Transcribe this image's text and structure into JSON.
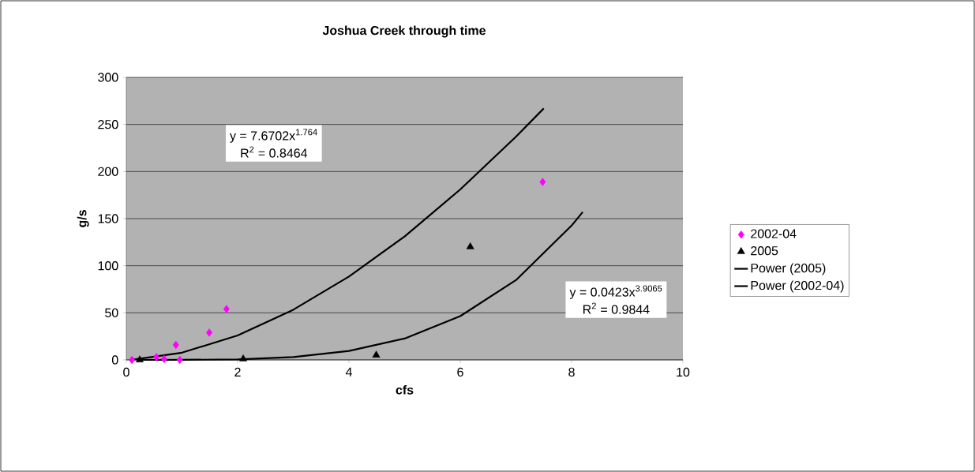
{
  "chart_data": {
    "type": "scatter",
    "title": "Joshua Creek through time",
    "xlabel": "cfs",
    "ylabel": "g/s",
    "xlim": [
      0,
      10
    ],
    "xticks": [
      0,
      2,
      4,
      6,
      8,
      10
    ],
    "ylim": [
      0,
      300
    ],
    "yticks": [
      0,
      50,
      100,
      150,
      200,
      250,
      300
    ],
    "grid": "y",
    "legend": "right",
    "series": [
      {
        "name": "2002-04",
        "color": "#ff00ff",
        "marker": "diamond",
        "x": [
          0.1,
          0.54,
          0.68,
          0.89,
          0.96,
          1.49,
          1.8,
          7.48
        ],
        "values": [
          0,
          3,
          1,
          16,
          0,
          29,
          54,
          189
        ]
      },
      {
        "name": "2005",
        "color": "#000000",
        "marker": "triangle",
        "x": [
          0.24,
          2.1,
          4.49,
          6.18
        ],
        "values": [
          0,
          1,
          5,
          120
        ]
      },
      {
        "name": "Power (2005)",
        "type": "line",
        "color": "#000000",
        "marker": "none",
        "x": [
          0.24,
          1,
          2,
          3,
          4,
          5,
          6,
          7,
          8,
          8.2
        ],
        "values": [
          0,
          0.04,
          0.6,
          3.1,
          9.5,
          22.7,
          46.5,
          84.7,
          142.6,
          157
        ]
      },
      {
        "name": "Power (2002-04)",
        "type": "line",
        "color": "#000000",
        "marker": "none",
        "x": [
          0.1,
          1,
          2,
          3,
          4,
          5,
          6,
          7,
          7.5
        ],
        "values": [
          0.1,
          7.7,
          26,
          53.3,
          88.5,
          131,
          181,
          237,
          267
        ]
      }
    ],
    "annotations": [
      "y = 7.6702x$^{1.764}$",
      "R$^{2}$ = 0.8464",
      "y = 0.0423x$^{3.9065}$",
      "R$^{2}$ = 0.9844"
    ]
  }
}
